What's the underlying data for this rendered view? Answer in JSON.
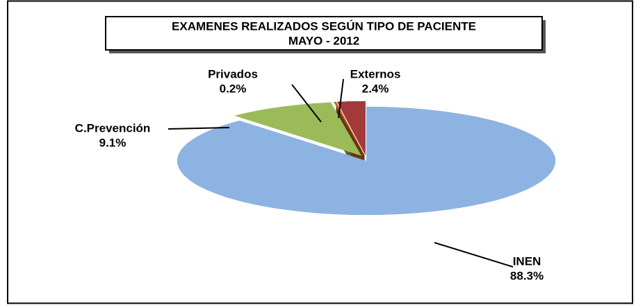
{
  "chart_data": {
    "type": "pie",
    "title": "EXAMENES REALIZADOS SEGÚN TIPO DE PACIENTE",
    "subtitle": "MAYO  - 2012",
    "categories": [
      "INEN",
      "C.Prevención",
      "Privados",
      "Externos"
    ],
    "values": [
      88.3,
      9.1,
      0.2,
      2.4
    ],
    "value_labels": [
      "88.3%",
      "9.1%",
      "0.2%",
      "2.4%"
    ],
    "colors": [
      "#8db3e2",
      "#9bbb59",
      "#c0601e",
      "#a33a3a"
    ]
  }
}
